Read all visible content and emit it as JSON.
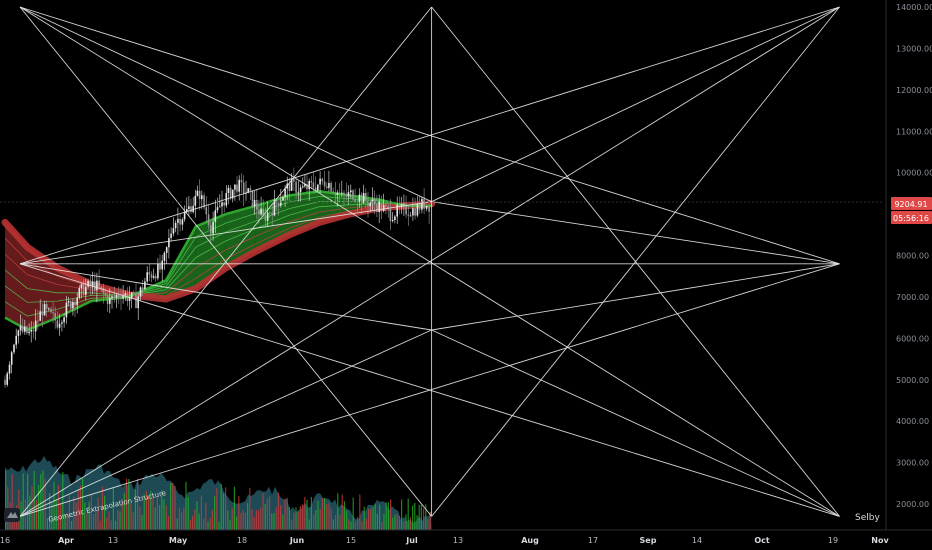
{
  "chart_data": {
    "type": "candlestick",
    "annotations": {
      "structure_label": "Geometric Extrapolation Structure",
      "author_label": "Selby"
    },
    "price_badge": {
      "price": "9204.91",
      "countdown": "05:56:16"
    },
    "y_axis": {
      "ticks": [
        "14000.00",
        "13000.00",
        "12000.00",
        "11000.00",
        "10000.00",
        "9000.00",
        "8000.00",
        "7000.00",
        "6000.00",
        "5000.00",
        "4000.00",
        "3000.00",
        "2000.00"
      ],
      "range": [
        1700,
        14100
      ]
    },
    "x_axis": {
      "ticks": [
        {
          "label": "16",
          "bold": false
        },
        {
          "label": "Apr",
          "bold": true
        },
        {
          "label": "13",
          "bold": false
        },
        {
          "label": "May",
          "bold": true
        },
        {
          "label": "18",
          "bold": false
        },
        {
          "label": "Jun",
          "bold": true
        },
        {
          "label": "15",
          "bold": false
        },
        {
          "label": "Jul",
          "bold": true
        },
        {
          "label": "13",
          "bold": false
        },
        {
          "label": "Aug",
          "bold": true
        },
        {
          "label": "17",
          "bold": false
        },
        {
          "label": "Sep",
          "bold": true
        },
        {
          "label": "14",
          "bold": false
        },
        {
          "label": "Oct",
          "bold": true
        },
        {
          "label": "19",
          "bold": false
        },
        {
          "label": "Nov",
          "bold": true
        }
      ]
    },
    "price_series": [
      [
        "2020-03-16",
        5000
      ],
      [
        "2020-03-19",
        6200
      ],
      [
        "2020-03-23",
        6100
      ],
      [
        "2020-03-26",
        6700
      ],
      [
        "2020-03-30",
        6400
      ],
      [
        "2020-04-02",
        6800
      ],
      [
        "2020-04-06",
        7200
      ],
      [
        "2020-04-09",
        7300
      ],
      [
        "2020-04-13",
        6900
      ],
      [
        "2020-04-16",
        7100
      ],
      [
        "2020-04-20",
        6900
      ],
      [
        "2020-04-23",
        7500
      ],
      [
        "2020-04-27",
        7700
      ],
      [
        "2020-04-30",
        8800
      ],
      [
        "2020-05-03",
        9000
      ],
      [
        "2020-05-07",
        9500
      ],
      [
        "2020-05-10",
        8700
      ],
      [
        "2020-05-13",
        9300
      ],
      [
        "2020-05-17",
        9700
      ],
      [
        "2020-05-20",
        9500
      ],
      [
        "2020-05-24",
        8900
      ],
      [
        "2020-05-27",
        9200
      ],
      [
        "2020-05-31",
        9700
      ],
      [
        "2020-06-03",
        9600
      ],
      [
        "2020-06-07",
        9700
      ],
      [
        "2020-06-10",
        9800
      ],
      [
        "2020-06-14",
        9400
      ],
      [
        "2020-06-17",
        9500
      ],
      [
        "2020-06-21",
        9300
      ],
      [
        "2020-06-24",
        9200
      ],
      [
        "2020-06-27",
        9000
      ],
      [
        "2020-06-30",
        9100
      ],
      [
        "2020-07-03",
        9100
      ],
      [
        "2020-07-06",
        9250
      ],
      [
        "2020-07-08",
        9205
      ]
    ],
    "ribbon_slow": [
      [
        "2020-03-16",
        8800
      ],
      [
        "2020-03-22",
        8200
      ],
      [
        "2020-03-30",
        7700
      ],
      [
        "2020-04-08",
        7300
      ],
      [
        "2020-04-18",
        7050
      ],
      [
        "2020-04-28",
        6950
      ],
      [
        "2020-05-06",
        7200
      ],
      [
        "2020-05-14",
        7700
      ],
      [
        "2020-05-22",
        8100
      ],
      [
        "2020-05-31",
        8500
      ],
      [
        "2020-06-08",
        8800
      ],
      [
        "2020-06-16",
        9000
      ],
      [
        "2020-06-24",
        9150
      ],
      [
        "2020-07-01",
        9200
      ],
      [
        "2020-07-08",
        9250
      ]
    ],
    "ribbon_fast": [
      [
        "2020-03-16",
        6500
      ],
      [
        "2020-03-22",
        6200
      ],
      [
        "2020-03-30",
        6500
      ],
      [
        "2020-04-08",
        6900
      ],
      [
        "2020-04-18",
        7000
      ],
      [
        "2020-04-28",
        7400
      ],
      [
        "2020-05-06",
        8700
      ],
      [
        "2020-05-14",
        9000
      ],
      [
        "2020-05-22",
        9200
      ],
      [
        "2020-05-31",
        9450
      ],
      [
        "2020-06-08",
        9550
      ],
      [
        "2020-06-16",
        9450
      ],
      [
        "2020-06-24",
        9350
      ],
      [
        "2020-07-01",
        9200
      ],
      [
        "2020-07-08",
        9200
      ]
    ],
    "geometric_points": {
      "top_left": [
        "2020-03-20",
        14000
      ],
      "top_mid": [
        "2020-07-08",
        14000
      ],
      "top_right": [
        "2020-10-25",
        14000
      ],
      "mid_left": [
        "2020-03-20",
        7800
      ],
      "mid_right": [
        "2020-10-25",
        7800
      ],
      "bot_left": [
        "2020-03-20",
        1700
      ],
      "bot_mid": [
        "2020-07-08",
        1700
      ],
      "bot_right": [
        "2020-10-25",
        1700
      ],
      "inner_upper": [
        "2020-07-08",
        9300
      ],
      "inner_lower": [
        "2020-07-08",
        6200
      ]
    },
    "colors": {
      "background": "#000000",
      "geometry": "#e6e6e6",
      "bull": "#26b526",
      "bear": "#d43a3a",
      "ribbon_slow": "#b83232",
      "ribbon_fast": "#30b530",
      "volume_area": "#2a6a78",
      "price_badge": "#e04848"
    }
  }
}
